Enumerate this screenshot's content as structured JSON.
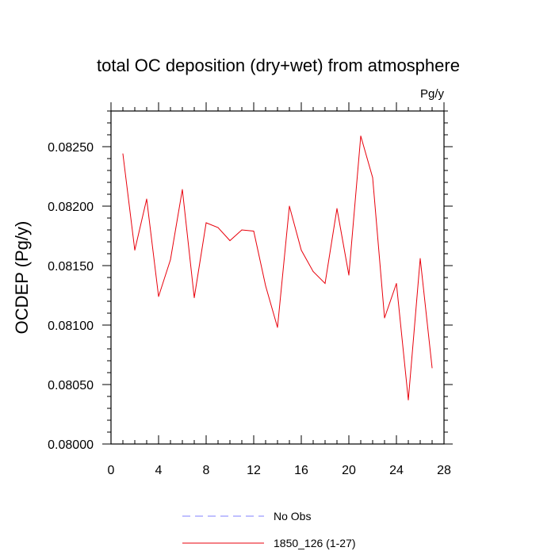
{
  "chart_data": {
    "type": "line",
    "title": "total OC deposition (dry+wet) from atmosphere",
    "units_label": "Pg/y",
    "ylabel": "OCDEP  (Pg/y)",
    "xlabel": "",
    "xlim": [
      0,
      28
    ],
    "ylim": [
      0.08,
      0.0828
    ],
    "x_ticks": [
      "0",
      "4",
      "8",
      "12",
      "16",
      "20",
      "24",
      "28"
    ],
    "y_ticks": [
      "0.08000",
      "0.08050",
      "0.08100",
      "0.08150",
      "0.08200",
      "0.08250"
    ],
    "grid": false,
    "legend_position": "bottom",
    "series": [
      {
        "name": "No Obs",
        "color": "#8080ff",
        "style": "dashed",
        "x": [],
        "values": []
      },
      {
        "name": "1850_126 (1-27)",
        "color": "#e8000b",
        "style": "solid",
        "x": [
          1,
          2,
          3,
          4,
          5,
          6,
          7,
          8,
          9,
          10,
          11,
          12,
          13,
          14,
          15,
          16,
          17,
          18,
          19,
          20,
          21,
          22,
          23,
          24,
          25,
          26,
          27
        ],
        "values": [
          0.08244,
          0.08163,
          0.08206,
          0.08124,
          0.08155,
          0.08214,
          0.08123,
          0.08186,
          0.08182,
          0.08171,
          0.0818,
          0.08179,
          0.08133,
          0.08098,
          0.082,
          0.08163,
          0.08145,
          0.08135,
          0.08198,
          0.08142,
          0.08259,
          0.08224,
          0.08106,
          0.08135,
          0.08037,
          0.08156,
          0.08064
        ]
      }
    ]
  }
}
